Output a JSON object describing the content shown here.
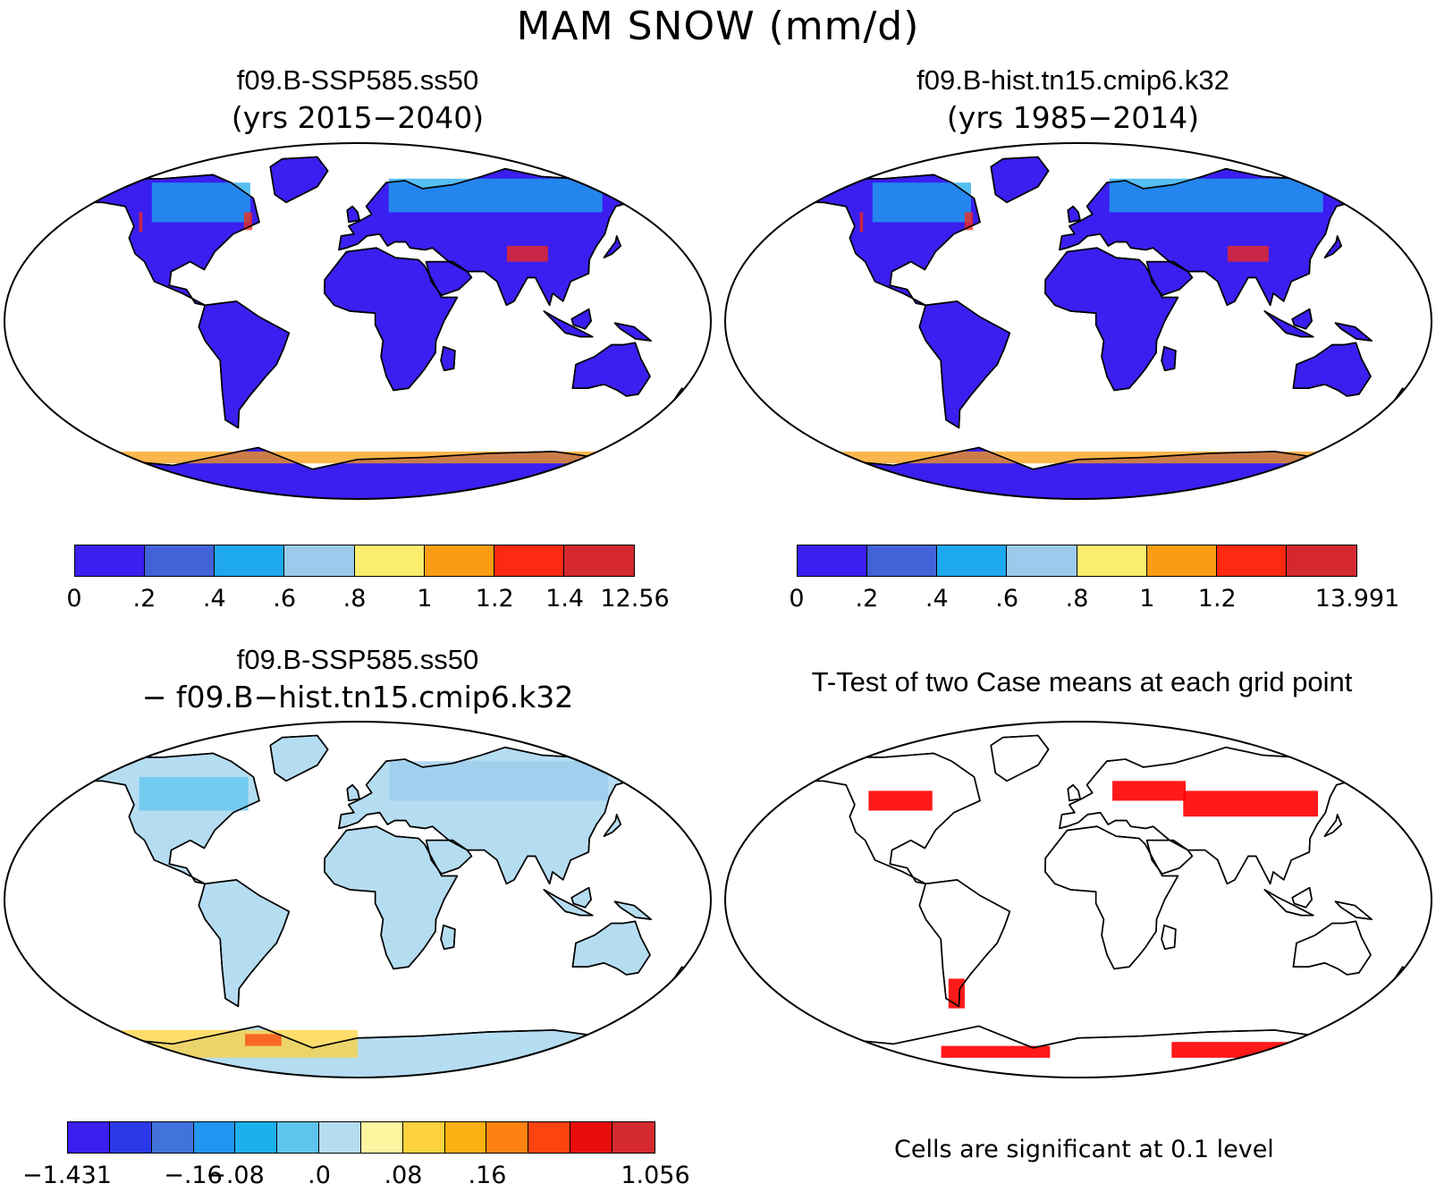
{
  "title": "MAM SNOW (mm/d)",
  "panels": [
    {
      "id": "case1",
      "case_name": "f09.B-SSP585.ss50",
      "subtitle": "(yrs 2015−2040)",
      "colorbar": {
        "colors": [
          "#3a1ff0",
          "#4262d8",
          "#1ea8ee",
          "#9bcbec",
          "#fbed6e",
          "#fb9d12",
          "#fb2a10",
          "#d4282e"
        ],
        "tick_labels": [
          "0",
          ".2",
          ".4",
          ".6",
          ".8",
          "1",
          "1.2",
          "1.4",
          "12.56"
        ]
      }
    },
    {
      "id": "case2",
      "case_name": "f09.B-hist.tn15.cmip6.k32",
      "subtitle": "(yrs 1985−2014)",
      "colorbar": {
        "colors": [
          "#3a1ff0",
          "#4262d8",
          "#1ea8ee",
          "#9bcbec",
          "#fbed6e",
          "#fb9d12",
          "#fb2a10",
          "#d4282e"
        ],
        "tick_labels": [
          "0",
          ".2",
          ".4",
          ".6",
          ".8",
          "1",
          "1.2",
          "",
          "13.991"
        ]
      }
    },
    {
      "id": "diff",
      "case_name": "f09.B-SSP585.ss50",
      "subtitle": "− f09.B−hist.tn15.cmip6.k32",
      "colorbar": {
        "colors": [
          "#3a1ff0",
          "#2a3ae8",
          "#4272dc",
          "#2196f0",
          "#1cb0ee",
          "#5ec4ee",
          "#b5ddf2",
          "#fdf5a0",
          "#fdd23c",
          "#fdb012",
          "#fd8212",
          "#fd4410",
          "#e80c0c",
          "#d42a2e"
        ],
        "tick_labels": [
          "−1.431",
          "",
          "",
          "−.16",
          "−.08",
          "",
          ".0",
          "",
          ".08",
          "",
          ".16",
          "",
          "",
          "",
          "1.056"
        ]
      }
    },
    {
      "id": "ttest",
      "case_name": "T-Test of two Case means at each grid point",
      "footnote": "Cells are significant at 0.1 level",
      "signif_color": "#ff0000"
    }
  ],
  "map_colors": {
    "ocean": "#ffffff",
    "land_low": "#3a1ff0",
    "coast": "#000000"
  }
}
